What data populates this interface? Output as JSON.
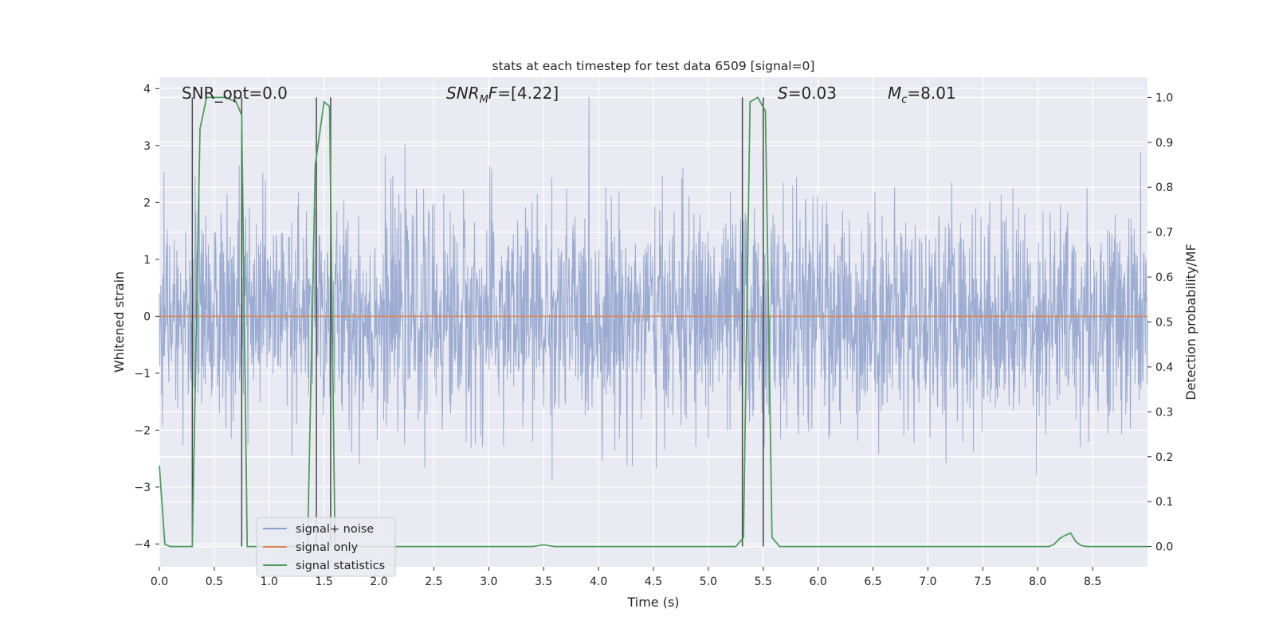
{
  "chart_data": {
    "type": "line",
    "title": "stats at each timestep for test data 6509 [signal=0]",
    "xlabel": "Time (s)",
    "ylabel": "Whitened strain",
    "y2label": "Detection probability/MF",
    "xlim": [
      0,
      9
    ],
    "ylim": [
      -4.4,
      4.2
    ],
    "y2lim": [
      -0.045,
      1.045
    ],
    "grid": true,
    "x_ticks": [
      0.0,
      0.5,
      1.0,
      1.5,
      2.0,
      2.5,
      3.0,
      3.5,
      4.0,
      4.5,
      5.0,
      5.5,
      6.0,
      6.5,
      7.0,
      7.5,
      8.0,
      8.5
    ],
    "x_tick_labels": [
      "0.0",
      "0.5",
      "1.0",
      "1.5",
      "2.0",
      "2.5",
      "3.0",
      "3.5",
      "4.0",
      "4.5",
      "5.0",
      "5.5",
      "6.0",
      "6.5",
      "7.0",
      "7.5",
      "8.0",
      "8.5"
    ],
    "y_ticks": [
      4,
      3,
      2,
      1,
      0,
      -1,
      -2,
      -3,
      -4
    ],
    "y_tick_labels": [
      "4",
      "3",
      "2",
      "1",
      "0",
      "−1",
      "−2",
      "−3",
      "−4"
    ],
    "y2_ticks": [
      1.0,
      0.9,
      0.8,
      0.7,
      0.6,
      0.5,
      0.4,
      0.3,
      0.2,
      0.1,
      0.0
    ],
    "y2_tick_labels": [
      "1.0",
      "0.9",
      "0.8",
      "0.7",
      "0.6",
      "0.5",
      "0.4",
      "0.3",
      "0.2",
      "0.1",
      "0.0"
    ],
    "legend": {
      "position": "lower-left",
      "entries": [
        "signal+ noise",
        "signal only",
        "signal statistics"
      ]
    },
    "colors": {
      "signal_noise": "#8da0cb",
      "signal_only": "#dd8452",
      "signal_statistics": "#4c9f59",
      "vertical_markers": "#4a4a4a",
      "background": "#eaeaf2"
    },
    "annotations": {
      "snr_opt": "SNR_opt=0.0",
      "snr_mf_italic": "SNR",
      "snr_mf_sub": "M",
      "snr_mf_italic2": "F",
      "snr_mf_value": "=[4.22]",
      "s_italic": "S",
      "s_value": "=0.03",
      "mc_italic": "M",
      "mc_sub": "c",
      "mc_value": "=8.01"
    },
    "series": [
      {
        "name": "signal+ noise",
        "axis": "left",
        "noise_sigma": 0.95,
        "noise_clip": [
          -4.0,
          3.85
        ],
        "x_range": [
          0,
          9
        ]
      },
      {
        "name": "signal only",
        "axis": "left",
        "x": [
          0,
          9
        ],
        "y": [
          0,
          0
        ]
      },
      {
        "name": "signal statistics",
        "axis": "right",
        "x": [
          0.0,
          0.05,
          0.1,
          0.3,
          0.37,
          0.43,
          0.6,
          0.7,
          0.75,
          0.8,
          1.35,
          1.42,
          1.5,
          1.55,
          1.6,
          1.65,
          3.4,
          3.5,
          3.6,
          5.25,
          5.32,
          5.38,
          5.45,
          5.52,
          5.58,
          5.65,
          8.1,
          8.15,
          8.2,
          8.25,
          8.3,
          8.35,
          8.4,
          8.45,
          8.5,
          9.0
        ],
        "y": [
          0.18,
          0.005,
          0.0,
          0.0,
          0.93,
          1.0,
          1.0,
          0.99,
          0.96,
          0.0,
          0.0,
          0.85,
          0.99,
          0.98,
          0.0,
          0.0,
          0.0,
          0.004,
          0.0,
          0.0,
          0.02,
          0.99,
          1.0,
          0.97,
          0.02,
          0.0,
          0.0,
          0.005,
          0.018,
          0.025,
          0.03,
          0.01,
          0.002,
          0.0,
          0.0,
          0.0
        ]
      }
    ],
    "vertical_markers": [
      0.3,
      0.75,
      1.43,
      1.56,
      5.31,
      5.5
    ]
  }
}
